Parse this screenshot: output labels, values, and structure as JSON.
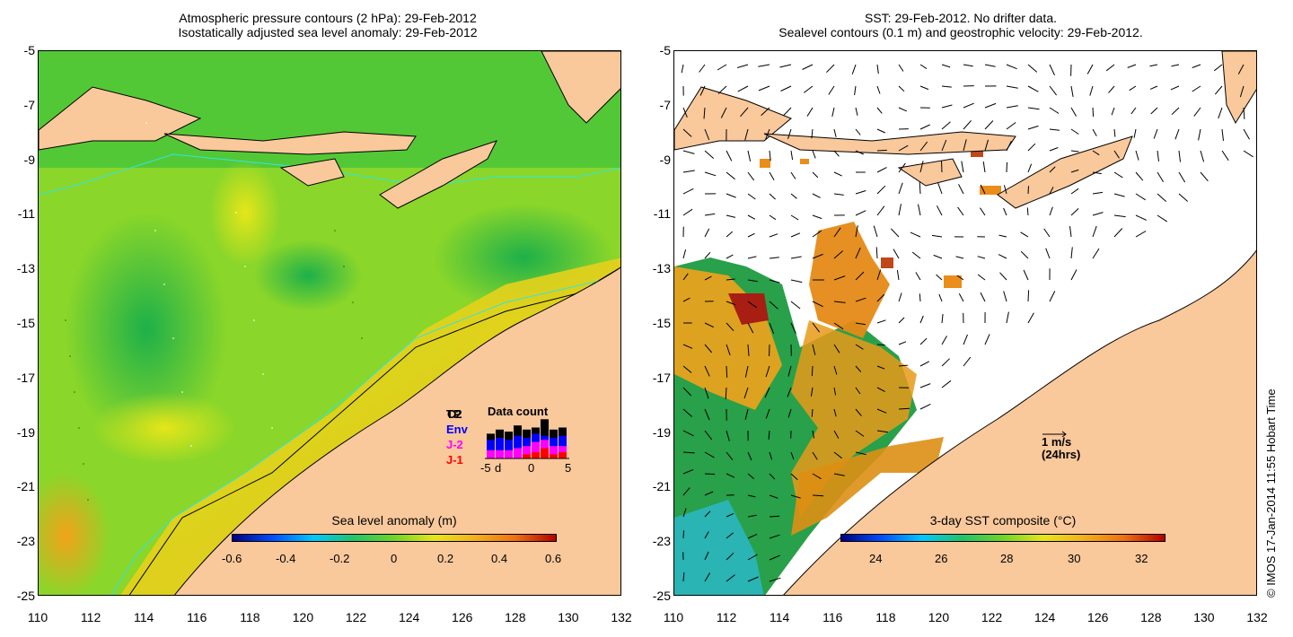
{
  "left_panel": {
    "title_line1": "Atmospheric pressure contours (2 hPa): 29-Feb-2012",
    "title_line2": "Isostatically adjusted sea level anomaly: 29-Feb-2012",
    "colorbar_label": "Sea level anomaly (m)",
    "colorbar_ticks": [
      "-0.6",
      "-0.4",
      "-0.2",
      "0",
      "0.2",
      "0.4",
      "0.6"
    ],
    "data_count": {
      "title": "Data count",
      "legend": [
        {
          "label": "TP",
          "color": "#000000",
          "overlay": "C2"
        },
        {
          "label": "Env",
          "color": "#0000ff"
        },
        {
          "label": "J-2",
          "color": "#ff00ff"
        },
        {
          "label": "J-1",
          "color": "#ff0000"
        }
      ],
      "x_ticks": [
        "-5",
        "d",
        "0",
        "5"
      ],
      "bars": [
        {
          "black": 0.6,
          "blue": 0.45,
          "magenta": 0.2,
          "red": 0.0
        },
        {
          "black": 0.7,
          "blue": 0.5,
          "magenta": 0.2,
          "red": 0.0
        },
        {
          "black": 0.65,
          "blue": 0.45,
          "magenta": 0.2,
          "red": 0.0
        },
        {
          "black": 0.8,
          "blue": 0.55,
          "magenta": 0.25,
          "red": 0.0
        },
        {
          "black": 0.7,
          "blue": 0.5,
          "magenta": 0.3,
          "red": 0.1
        },
        {
          "black": 0.75,
          "blue": 0.6,
          "magenta": 0.4,
          "red": 0.15
        },
        {
          "black": 0.95,
          "blue": 0.55,
          "magenta": 0.45,
          "red": 0.25
        },
        {
          "black": 0.7,
          "blue": 0.5,
          "magenta": 0.3,
          "red": 0.1
        },
        {
          "black": 0.75,
          "blue": 0.55,
          "magenta": 0.3,
          "red": 0.15
        }
      ]
    }
  },
  "right_panel": {
    "title_line1": "SST: 29-Feb-2012. No drifter data.",
    "title_line2": "Sealevel contours (0.1 m) and geostrophic velocity: 29-Feb-2012.",
    "colorbar_label": "3-day SST composite (°C)",
    "colorbar_ticks": [
      "24",
      "26",
      "28",
      "30",
      "32"
    ],
    "velocity_scale_line1": "1 m/s",
    "velocity_scale_line2": "(24hrs)"
  },
  "axes": {
    "lat_ticks": [
      "-5",
      "-7",
      "-9",
      "-11",
      "-13",
      "-15",
      "-17",
      "-19",
      "-21",
      "-23",
      "-25"
    ],
    "lon_ticks": [
      "110",
      "112",
      "114",
      "116",
      "118",
      "120",
      "122",
      "124",
      "126",
      "128",
      "130",
      "132"
    ]
  },
  "copyright": "© IMOS 17-Jan-2014 11:55 Hobart Time",
  "colors": {
    "land": "#f9c89b",
    "sea_green": "#7ed321",
    "coast": "#000000",
    "bathy": "#2ee6e6"
  }
}
